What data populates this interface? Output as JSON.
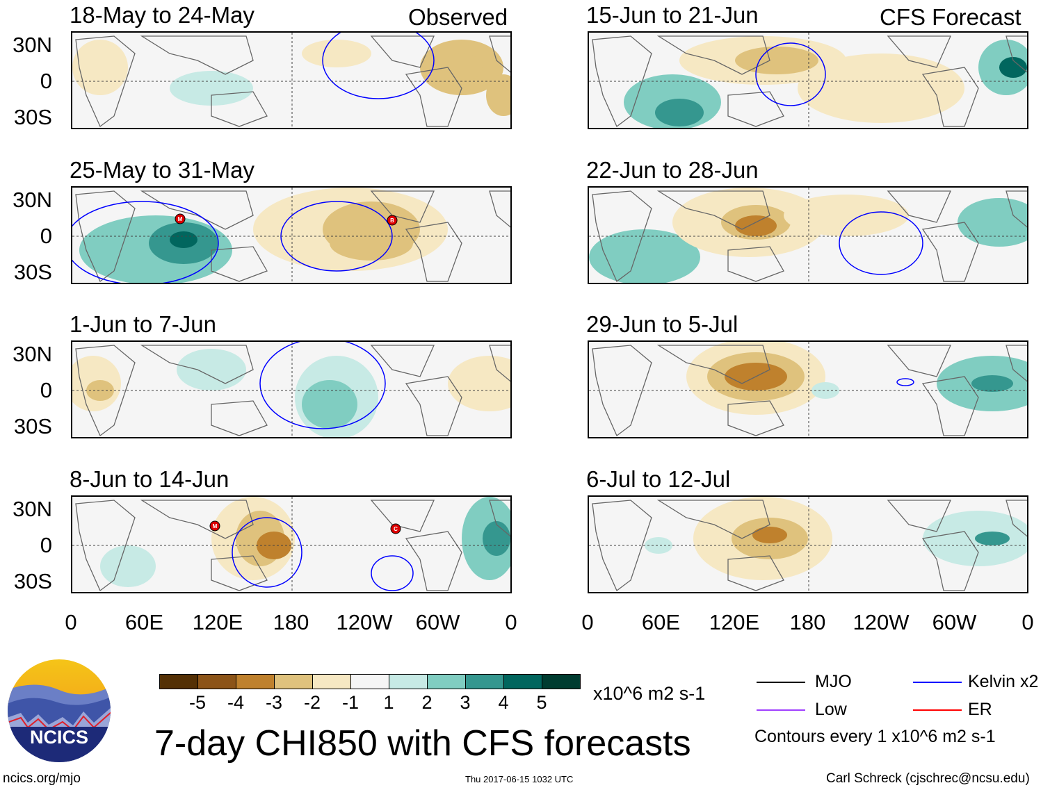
{
  "header": {
    "left_label": "Observed",
    "right_label": "CFS Forecast"
  },
  "panels": {
    "observed": [
      {
        "title": "18-May to 24-May"
      },
      {
        "title": "25-May to 31-May",
        "markers": [
          "M",
          "B"
        ]
      },
      {
        "title": "1-Jun to 7-Jun"
      },
      {
        "title": "8-Jun to 14-Jun",
        "markers": [
          "M",
          "C"
        ]
      }
    ],
    "forecast": [
      {
        "title": "15-Jun to 21-Jun"
      },
      {
        "title": "22-Jun to 28-Jun"
      },
      {
        "title": "29-Jun to 5-Jul"
      },
      {
        "title": "6-Jul to 12-Jul"
      }
    ]
  },
  "axes": {
    "lat_ticks": [
      "30N",
      "0",
      "30S"
    ],
    "lon_ticks": [
      "0",
      "60E",
      "120E",
      "180",
      "120W",
      "60W",
      "0"
    ]
  },
  "colorbar": {
    "colors": [
      "#543005",
      "#8c5418",
      "#bf812d",
      "#dfc27d",
      "#f6e8c3",
      "#f5f5f5",
      "#c7eae5",
      "#80cdc1",
      "#35978f",
      "#01665e",
      "#003c30"
    ],
    "labels": [
      "-5",
      "-4",
      "-3",
      "-2",
      "-1",
      "1",
      "2",
      "3",
      "4",
      "5"
    ],
    "units": "x10^6 m2 s-1"
  },
  "legend": {
    "items": [
      {
        "label": "MJO",
        "color": "#000000"
      },
      {
        "label": "Kelvin x2",
        "color": "#0000ff"
      },
      {
        "label": "Low",
        "color": "#a040ff"
      },
      {
        "label": "ER",
        "color": "#ff0000"
      }
    ],
    "note": "Contours every 1 x10^6 m2 s-1"
  },
  "title": "7-day CHI850 with CFS forecasts",
  "logo": {
    "text": "NCICS"
  },
  "footer": {
    "url": "ncics.org/mjo",
    "timestamp": "Thu 2017-06-15 1032 UTC",
    "credit": "Carl Schreck (cjschrec@ncsu.edu)"
  }
}
